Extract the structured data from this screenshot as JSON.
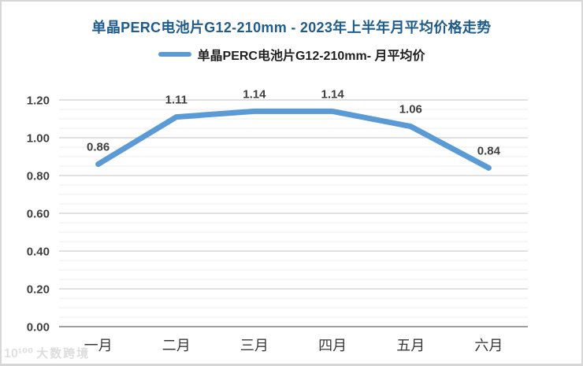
{
  "page": {
    "background": "#ffffff",
    "frame_color": "#d7d7d7"
  },
  "header": {
    "title": "单晶PERC电池片G12-210mm - 2023年上半年月平均价格走势",
    "title_color": "#1F5C8B"
  },
  "legend": {
    "marker_color": "#5B9BD5",
    "label": "单晶PERC电池片G12-210mm- 月平均价"
  },
  "watermark": {
    "logo": "10¹⁰⁰",
    "text": "大数跨境"
  },
  "chart_data": {
    "type": "line",
    "title": "单晶PERC电池片G12-210mm - 2023年上半年月平均价格走势",
    "categories": [
      "一月",
      "二月",
      "三月",
      "四月",
      "五月",
      "六月"
    ],
    "series": [
      {
        "name": "单晶PERC电池片G12-210mm- 月平均价",
        "color": "#5B9BD5",
        "values": [
          0.86,
          1.11,
          1.14,
          1.14,
          1.06,
          0.84
        ]
      }
    ],
    "data_labels": [
      "0.86",
      "1.11",
      "1.14",
      "1.14",
      "1.06",
      "0.84"
    ],
    "xlabel": "",
    "ylabel": "",
    "ylim": [
      0,
      1.2
    ],
    "y_major_step": 0.2,
    "y_minor_step": 0.05,
    "y_tick_labels": [
      "0.00",
      "0.20",
      "0.40",
      "0.60",
      "0.80",
      "1.00",
      "1.20"
    ],
    "grid": true,
    "legend_position": "top",
    "colors": {
      "line": "#5B9BD5",
      "grid_major": "#c3c3c3",
      "grid_minor": "#ececec",
      "axis": "#9e9e9e",
      "tick_label": "#3f3f3f",
      "data_label": "#3f3f3f",
      "x_label": "#383838"
    }
  }
}
